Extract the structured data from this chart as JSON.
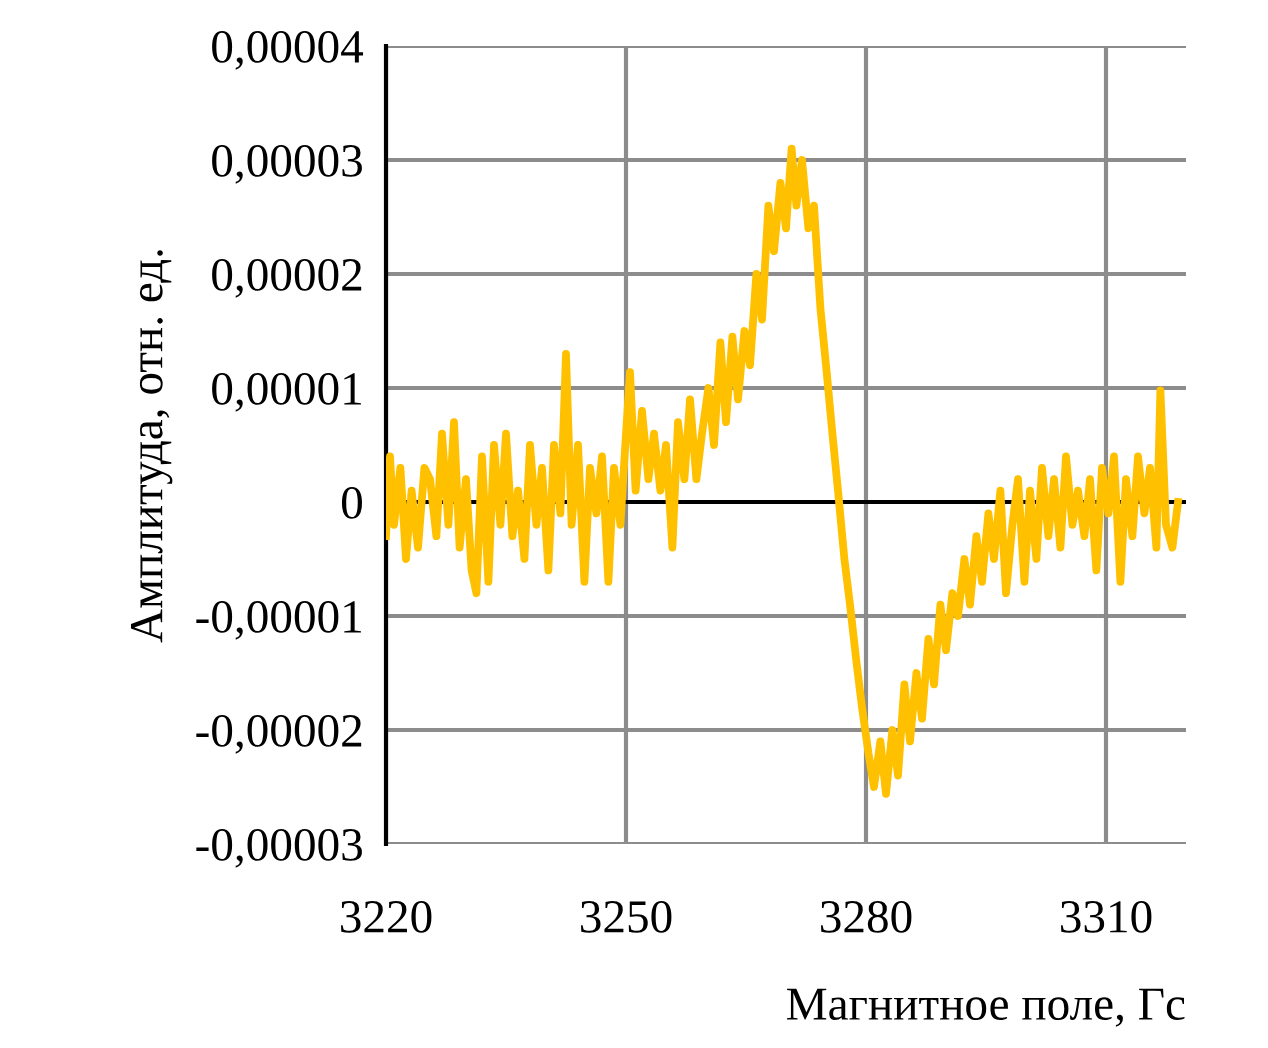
{
  "chart_data": {
    "type": "line",
    "xlabel": "Магнитное поле, Гс",
    "ylabel": "Амплитуда, отн. ед.",
    "xlim": [
      3220,
      3320
    ],
    "xticks": [
      3220,
      3250,
      3280,
      3310
    ],
    "ylim": [
      -3e-05,
      4e-05
    ],
    "yticks": [
      {
        "value": -3e-05,
        "label": "-0,00003"
      },
      {
        "value": -2e-05,
        "label": "-0,00002"
      },
      {
        "value": -1e-05,
        "label": "-0,00001"
      },
      {
        "value": 0,
        "label": "0"
      },
      {
        "value": 1e-05,
        "label": "0,00001"
      },
      {
        "value": 2e-05,
        "label": "0,00002"
      },
      {
        "value": 3e-05,
        "label": "0,00003"
      },
      {
        "value": 4e-05,
        "label": "0,00004"
      }
    ],
    "grid": true,
    "marker": "none",
    "line_style": "solid",
    "series": [
      {
        "color": "#ffc000",
        "x": [
          3220,
          3220.5,
          3221,
          3221.8,
          3222.5,
          3223.2,
          3224,
          3224.8,
          3225.5,
          3226.3,
          3227,
          3227.8,
          3228.5,
          3229.2,
          3230,
          3230.7,
          3231.3,
          3232,
          3232.8,
          3233.5,
          3234.3,
          3235,
          3235.8,
          3236.5,
          3237.3,
          3238,
          3238.8,
          3239.5,
          3240.3,
          3241,
          3241.8,
          3242.5,
          3243.2,
          3244,
          3244.8,
          3245.5,
          3246.3,
          3247,
          3247.8,
          3248.5,
          3249.3,
          3250,
          3250.5,
          3251.2,
          3252,
          3252.8,
          3253.5,
          3254.3,
          3255,
          3255.8,
          3256.5,
          3257.3,
          3258,
          3258.8,
          3259.5,
          3260.3,
          3261,
          3261.8,
          3262.5,
          3263.3,
          3264,
          3264.8,
          3265.5,
          3266.3,
          3267,
          3267.8,
          3268.5,
          3269.3,
          3270,
          3270.7,
          3271.3,
          3272,
          3272.8,
          3273.5,
          3274.3,
          3275,
          3275.8,
          3276.5,
          3277.3,
          3278,
          3278.8,
          3279.5,
          3280.3,
          3281,
          3281.8,
          3282.5,
          3283.3,
          3284,
          3284.8,
          3285.5,
          3286.3,
          3287,
          3287.8,
          3288.5,
          3289.3,
          3290,
          3290.8,
          3291.5,
          3292.3,
          3293,
          3293.8,
          3294.5,
          3295.3,
          3296,
          3296.8,
          3297.5,
          3298.3,
          3299,
          3299.8,
          3300.5,
          3301.3,
          3302,
          3302.8,
          3303.5,
          3304.3,
          3305,
          3305.8,
          3306.5,
          3307.3,
          3308,
          3308.8,
          3309.5,
          3310.3,
          3311,
          3311.8,
          3312.5,
          3313.3,
          3314,
          3314.8,
          3315.5,
          3316.3,
          3316.8,
          3317.5,
          3318.3,
          3319
        ],
        "values": [
          -3e-06,
          4e-06,
          -2e-06,
          3e-06,
          -5e-06,
          1e-06,
          -4e-06,
          3e-06,
          2e-06,
          -3e-06,
          6e-06,
          -2e-06,
          7e-06,
          -4e-06,
          2e-06,
          -6e-06,
          -8e-06,
          4e-06,
          -7e-06,
          5e-06,
          -2e-06,
          6e-06,
          -3e-06,
          1e-06,
          -5e-06,
          5e-06,
          -2e-06,
          3e-06,
          -6e-06,
          5e-06,
          -1e-06,
          1.3e-05,
          -2e-06,
          5e-06,
          -7e-06,
          3e-06,
          -1e-06,
          4e-06,
          -7e-06,
          3e-06,
          -2e-06,
          6e-06,
          1.14e-05,
          1e-06,
          8e-06,
          2e-06,
          6e-06,
          1e-06,
          5e-06,
          -4e-06,
          7e-06,
          2e-06,
          9e-06,
          2e-06,
          6e-06,
          1e-05,
          5e-06,
          1.4e-05,
          7e-06,
          1.45e-05,
          9e-06,
          1.5e-05,
          1.2e-05,
          2e-05,
          1.6e-05,
          2.6e-05,
          2.2e-05,
          2.8e-05,
          2.4e-05,
          3.1e-05,
          2.6e-05,
          3e-05,
          2.4e-05,
          2.6e-05,
          1.7e-05,
          1.2e-05,
          6e-06,
          1e-06,
          -5e-06,
          -9e-06,
          -1.4e-05,
          -1.8e-05,
          -2.2e-05,
          -2.5e-05,
          -2.1e-05,
          -2.56e-05,
          -2e-05,
          -2.4e-05,
          -1.6e-05,
          -2.1e-05,
          -1.5e-05,
          -1.9e-05,
          -1.2e-05,
          -1.6e-05,
          -9e-06,
          -1.3e-05,
          -8e-06,
          -1e-05,
          -5e-06,
          -9e-06,
          -3e-06,
          -7e-06,
          -1e-06,
          -5e-06,
          1e-06,
          -8e-06,
          -2e-06,
          2e-06,
          -7e-06,
          1e-06,
          -5e-06,
          3e-06,
          -3e-06,
          2e-06,
          -4e-06,
          4e-06,
          -2e-06,
          1e-06,
          -3e-06,
          2e-06,
          -6e-06,
          3e-06,
          -1e-06,
          4e-06,
          -7e-06,
          2e-06,
          -3e-06,
          4e-06,
          -1e-06,
          3e-06,
          -4e-06,
          9.8e-06,
          -2e-06,
          -4e-06,
          0.0
        ]
      }
    ]
  }
}
